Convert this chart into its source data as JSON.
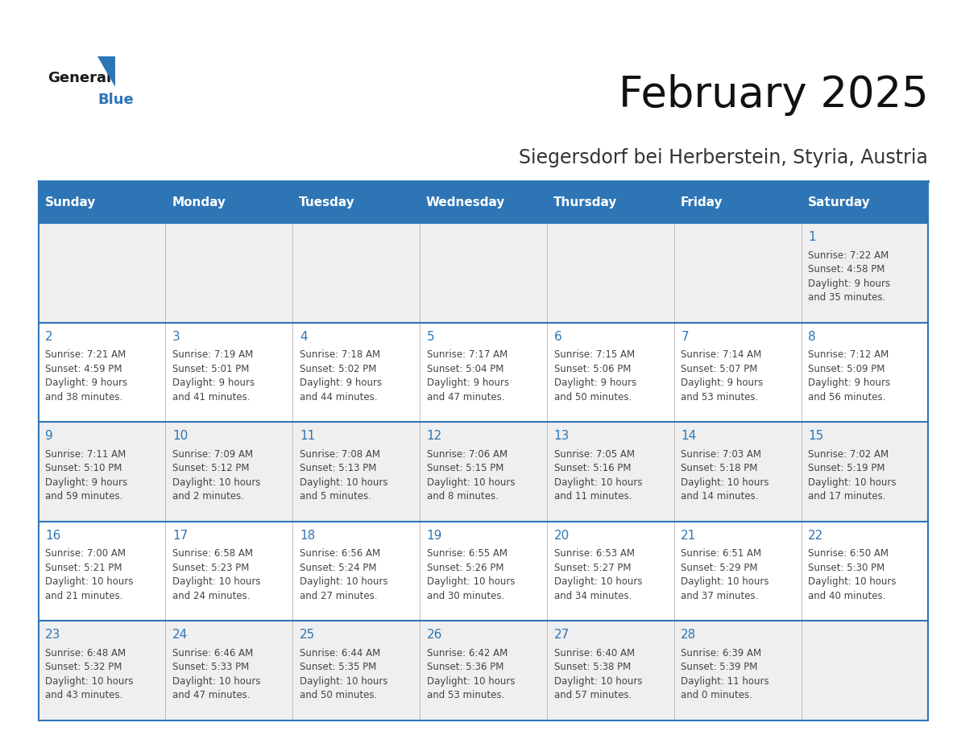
{
  "title": "February 2025",
  "subtitle": "Siegersdorf bei Herberstein, Styria, Austria",
  "header_bg": "#2E75B6",
  "header_text_color": "#FFFFFF",
  "cell_bg_odd": "#EFEFEF",
  "cell_bg_even": "#FFFFFF",
  "border_color": "#2E75B6",
  "day_number_color": "#2E75B6",
  "info_text_color": "#444444",
  "header_days": [
    "Sunday",
    "Monday",
    "Tuesday",
    "Wednesday",
    "Thursday",
    "Friday",
    "Saturday"
  ],
  "weeks": [
    [
      {
        "day": null,
        "info": null
      },
      {
        "day": null,
        "info": null
      },
      {
        "day": null,
        "info": null
      },
      {
        "day": null,
        "info": null
      },
      {
        "day": null,
        "info": null
      },
      {
        "day": null,
        "info": null
      },
      {
        "day": 1,
        "info": "Sunrise: 7:22 AM\nSunset: 4:58 PM\nDaylight: 9 hours\nand 35 minutes."
      }
    ],
    [
      {
        "day": 2,
        "info": "Sunrise: 7:21 AM\nSunset: 4:59 PM\nDaylight: 9 hours\nand 38 minutes."
      },
      {
        "day": 3,
        "info": "Sunrise: 7:19 AM\nSunset: 5:01 PM\nDaylight: 9 hours\nand 41 minutes."
      },
      {
        "day": 4,
        "info": "Sunrise: 7:18 AM\nSunset: 5:02 PM\nDaylight: 9 hours\nand 44 minutes."
      },
      {
        "day": 5,
        "info": "Sunrise: 7:17 AM\nSunset: 5:04 PM\nDaylight: 9 hours\nand 47 minutes."
      },
      {
        "day": 6,
        "info": "Sunrise: 7:15 AM\nSunset: 5:06 PM\nDaylight: 9 hours\nand 50 minutes."
      },
      {
        "day": 7,
        "info": "Sunrise: 7:14 AM\nSunset: 5:07 PM\nDaylight: 9 hours\nand 53 minutes."
      },
      {
        "day": 8,
        "info": "Sunrise: 7:12 AM\nSunset: 5:09 PM\nDaylight: 9 hours\nand 56 minutes."
      }
    ],
    [
      {
        "day": 9,
        "info": "Sunrise: 7:11 AM\nSunset: 5:10 PM\nDaylight: 9 hours\nand 59 minutes."
      },
      {
        "day": 10,
        "info": "Sunrise: 7:09 AM\nSunset: 5:12 PM\nDaylight: 10 hours\nand 2 minutes."
      },
      {
        "day": 11,
        "info": "Sunrise: 7:08 AM\nSunset: 5:13 PM\nDaylight: 10 hours\nand 5 minutes."
      },
      {
        "day": 12,
        "info": "Sunrise: 7:06 AM\nSunset: 5:15 PM\nDaylight: 10 hours\nand 8 minutes."
      },
      {
        "day": 13,
        "info": "Sunrise: 7:05 AM\nSunset: 5:16 PM\nDaylight: 10 hours\nand 11 minutes."
      },
      {
        "day": 14,
        "info": "Sunrise: 7:03 AM\nSunset: 5:18 PM\nDaylight: 10 hours\nand 14 minutes."
      },
      {
        "day": 15,
        "info": "Sunrise: 7:02 AM\nSunset: 5:19 PM\nDaylight: 10 hours\nand 17 minutes."
      }
    ],
    [
      {
        "day": 16,
        "info": "Sunrise: 7:00 AM\nSunset: 5:21 PM\nDaylight: 10 hours\nand 21 minutes."
      },
      {
        "day": 17,
        "info": "Sunrise: 6:58 AM\nSunset: 5:23 PM\nDaylight: 10 hours\nand 24 minutes."
      },
      {
        "day": 18,
        "info": "Sunrise: 6:56 AM\nSunset: 5:24 PM\nDaylight: 10 hours\nand 27 minutes."
      },
      {
        "day": 19,
        "info": "Sunrise: 6:55 AM\nSunset: 5:26 PM\nDaylight: 10 hours\nand 30 minutes."
      },
      {
        "day": 20,
        "info": "Sunrise: 6:53 AM\nSunset: 5:27 PM\nDaylight: 10 hours\nand 34 minutes."
      },
      {
        "day": 21,
        "info": "Sunrise: 6:51 AM\nSunset: 5:29 PM\nDaylight: 10 hours\nand 37 minutes."
      },
      {
        "day": 22,
        "info": "Sunrise: 6:50 AM\nSunset: 5:30 PM\nDaylight: 10 hours\nand 40 minutes."
      }
    ],
    [
      {
        "day": 23,
        "info": "Sunrise: 6:48 AM\nSunset: 5:32 PM\nDaylight: 10 hours\nand 43 minutes."
      },
      {
        "day": 24,
        "info": "Sunrise: 6:46 AM\nSunset: 5:33 PM\nDaylight: 10 hours\nand 47 minutes."
      },
      {
        "day": 25,
        "info": "Sunrise: 6:44 AM\nSunset: 5:35 PM\nDaylight: 10 hours\nand 50 minutes."
      },
      {
        "day": 26,
        "info": "Sunrise: 6:42 AM\nSunset: 5:36 PM\nDaylight: 10 hours\nand 53 minutes."
      },
      {
        "day": 27,
        "info": "Sunrise: 6:40 AM\nSunset: 5:38 PM\nDaylight: 10 hours\nand 57 minutes."
      },
      {
        "day": 28,
        "info": "Sunrise: 6:39 AM\nSunset: 5:39 PM\nDaylight: 11 hours\nand 0 minutes."
      },
      {
        "day": null,
        "info": null
      }
    ]
  ],
  "logo_text_general": "General",
  "logo_text_blue": "Blue",
  "logo_color_general": "#1a1a1a",
  "logo_color_blue": "#2E75B6",
  "logo_triangle_color": "#2E75B6",
  "title_fontsize": 38,
  "subtitle_fontsize": 17,
  "header_fontsize": 11,
  "day_num_fontsize": 11,
  "info_fontsize": 8.5
}
